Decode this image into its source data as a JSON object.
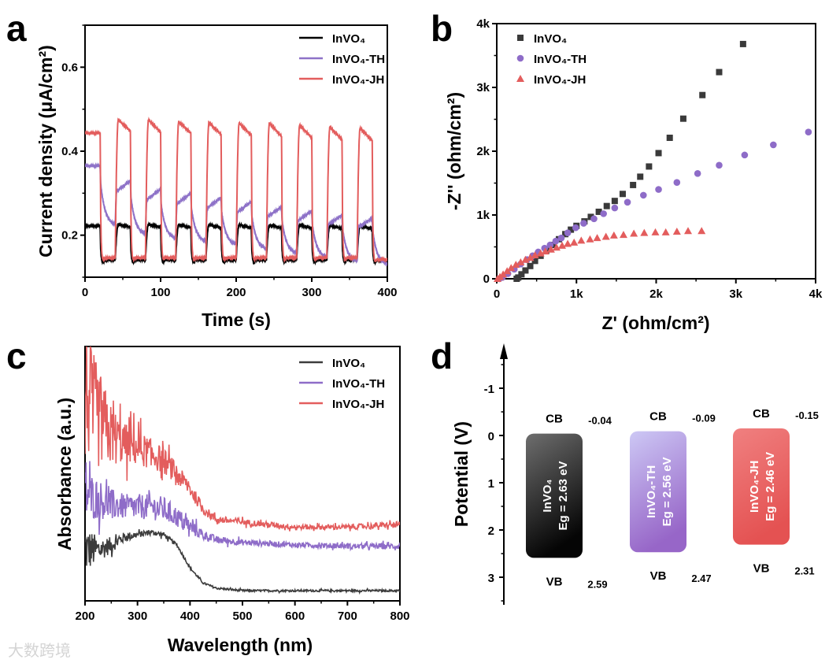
{
  "panel_labels": {
    "a": "a",
    "b": "b",
    "c": "c",
    "d": "d"
  },
  "watermark": "大数跨境",
  "chart_data": [
    {
      "panel": "a",
      "type": "line",
      "xlabel": "Time (s)",
      "ylabel": "Current density (μA/cm²)",
      "xlim": [
        0,
        400
      ],
      "ylim": [
        0.1,
        0.7
      ],
      "xticks": [
        0,
        100,
        200,
        300,
        400
      ],
      "xtick_labels": [
        "0",
        "100",
        "200",
        "300",
        "400"
      ],
      "yticks": [
        0.2,
        0.4,
        0.6
      ],
      "ytick_labels": [
        "0.2",
        "0.4",
        "0.6"
      ],
      "legend_position": "top-right",
      "light_on_intervals": [
        [
          40,
          60
        ],
        [
          80,
          100
        ],
        [
          120,
          140
        ],
        [
          160,
          180
        ],
        [
          200,
          220
        ],
        [
          240,
          260
        ],
        [
          280,
          300
        ],
        [
          320,
          340
        ],
        [
          360,
          380
        ]
      ],
      "off_intervals": [
        [
          20,
          40
        ],
        [
          60,
          80
        ],
        [
          100,
          120
        ],
        [
          140,
          160
        ],
        [
          180,
          200
        ],
        [
          220,
          240
        ],
        [
          260,
          280
        ],
        [
          300,
          320
        ],
        [
          340,
          360
        ],
        [
          380,
          400
        ]
      ],
      "series": [
        {
          "name": "InVO₄",
          "color": "#000000",
          "initial": 0.222,
          "decay_time_s": 0.8,
          "on_start": [
            0.226,
            0.226,
            0.225,
            0.225,
            0.225,
            0.224,
            0.224,
            0.223,
            0.222
          ],
          "on_end": [
            0.219,
            0.219,
            0.218,
            0.218,
            0.217,
            0.217,
            0.217,
            0.216,
            0.215
          ],
          "off_end": [
            0.141,
            0.141,
            0.141,
            0.141,
            0.141,
            0.141,
            0.141,
            0.141,
            0.141,
            0.14
          ]
        },
        {
          "name": "InVO₄-TH",
          "color": "#8e72c8",
          "initial": 0.365,
          "decay_time_s": 6,
          "on_start": [
            0.305,
            0.285,
            0.275,
            0.265,
            0.255,
            0.245,
            0.235,
            0.225,
            0.22
          ],
          "on_end": [
            0.33,
            0.31,
            0.3,
            0.29,
            0.28,
            0.267,
            0.258,
            0.248,
            0.24
          ],
          "off_end": [
            0.222,
            0.2,
            0.19,
            0.183,
            0.175,
            0.165,
            0.155,
            0.145,
            0.135,
            0.128
          ]
        },
        {
          "name": "InVO₄-JH",
          "color": "#e35d5d",
          "initial": 0.443,
          "decay_time_s": 0.8,
          "on_start": [
            0.475,
            0.475,
            0.47,
            0.468,
            0.467,
            0.467,
            0.462,
            0.457,
            0.455
          ],
          "on_end": [
            0.448,
            0.445,
            0.443,
            0.44,
            0.438,
            0.435,
            0.432,
            0.428,
            0.425
          ],
          "off_end": [
            0.146,
            0.146,
            0.146,
            0.146,
            0.146,
            0.146,
            0.146,
            0.146,
            0.146,
            0.142
          ]
        }
      ]
    },
    {
      "panel": "b",
      "type": "scatter",
      "xlabel": "Z' (ohm/cm²)",
      "ylabel": "-Z'' (ohm/cm²)",
      "xlim": [
        0,
        4000
      ],
      "ylim": [
        0,
        4000
      ],
      "xticks": [
        0,
        1000,
        2000,
        3000,
        4000
      ],
      "xtick_labels": [
        "0",
        "1k",
        "2k",
        "3k",
        "4k"
      ],
      "yticks": [
        0,
        1000,
        2000,
        3000,
        4000
      ],
      "ytick_labels": [
        "0",
        "1k",
        "2k",
        "3k",
        "4k"
      ],
      "legend_position": "top-left",
      "series": [
        {
          "name": "InVO₄",
          "color": "#3a3a3a",
          "marker": "square",
          "x": [
            250,
            270,
            310,
            360,
            420,
            480,
            550,
            620,
            700,
            780,
            860,
            930,
            1000,
            1100,
            1180,
            1280,
            1380,
            1480,
            1580,
            1710,
            1800,
            1910,
            2030,
            2170,
            2340,
            2580,
            2790,
            3090
          ],
          "y": [
            0,
            20,
            70,
            130,
            200,
            280,
            360,
            440,
            530,
            620,
            700,
            770,
            830,
            900,
            970,
            1050,
            1140,
            1220,
            1330,
            1470,
            1600,
            1760,
            1970,
            2210,
            2510,
            2880,
            3240,
            3680
          ]
        },
        {
          "name": "InVO₄-TH",
          "color": "#8e6cc8",
          "marker": "circle",
          "x": [
            30,
            70,
            140,
            220,
            300,
            380,
            450,
            520,
            600,
            670,
            740,
            810,
            890,
            990,
            1090,
            1220,
            1340,
            1480,
            1640,
            1840,
            2030,
            2260,
            2520,
            2790,
            3110,
            3470,
            3910
          ],
          "y": [
            0,
            20,
            80,
            150,
            230,
            300,
            360,
            420,
            480,
            530,
            590,
            640,
            720,
            800,
            870,
            940,
            1020,
            1110,
            1200,
            1310,
            1400,
            1510,
            1650,
            1780,
            1940,
            2100,
            2300
          ]
        },
        {
          "name": "InVO₄-JH",
          "color": "#e35d5d",
          "marker": "triangle",
          "x": [
            10,
            40,
            80,
            130,
            180,
            240,
            300,
            360,
            420,
            480,
            550,
            610,
            680,
            750,
            820,
            890,
            970,
            1060,
            1170,
            1260,
            1370,
            1470,
            1590,
            1720,
            1850,
            1990,
            2120,
            2260,
            2400,
            2570
          ],
          "y": [
            0,
            30,
            70,
            120,
            170,
            220,
            260,
            300,
            330,
            370,
            400,
            430,
            460,
            490,
            520,
            550,
            570,
            600,
            620,
            640,
            660,
            680,
            690,
            710,
            720,
            730,
            730,
            740,
            750,
            750
          ]
        }
      ]
    },
    {
      "panel": "c",
      "type": "line",
      "xlabel": "Wavelength (nm)",
      "ylabel": "Absorbance (a.u.)",
      "xlim": [
        200,
        800
      ],
      "ylim": [
        0,
        1
      ],
      "xticks": [
        200,
        300,
        400,
        500,
        600,
        700,
        800
      ],
      "xtick_labels": [
        "200",
        "300",
        "400",
        "500",
        "600",
        "700",
        "800"
      ],
      "legend_position": "top-right",
      "x": [
        200,
        225,
        250,
        275,
        300,
        325,
        350,
        375,
        400,
        425,
        450,
        500,
        600,
        700,
        800
      ],
      "series": [
        {
          "name": "InVO₄",
          "color": "#3c3c3c",
          "values": [
            0.2,
            0.2,
            0.22,
            0.25,
            0.26,
            0.27,
            0.26,
            0.22,
            0.13,
            0.07,
            0.05,
            0.04,
            0.04,
            0.04,
            0.04
          ],
          "noise": [
            0.1,
            0.05,
            0.03,
            0.02,
            0.012,
            0.01,
            0.01,
            0.006,
            0.005,
            0.004,
            0.004,
            0.004,
            0.004,
            0.004,
            0.004
          ]
        },
        {
          "name": "InVO₄-TH",
          "color": "#8e6cc8",
          "values": [
            0.42,
            0.4,
            0.38,
            0.37,
            0.37,
            0.37,
            0.36,
            0.33,
            0.29,
            0.26,
            0.24,
            0.23,
            0.22,
            0.215,
            0.215
          ],
          "noise": [
            0.1,
            0.08,
            0.06,
            0.05,
            0.05,
            0.05,
            0.05,
            0.04,
            0.03,
            0.02,
            0.015,
            0.012,
            0.01,
            0.01,
            0.012
          ]
        },
        {
          "name": "InVO₄-JH",
          "color": "#e35d5d",
          "values": [
            0.82,
            0.72,
            0.65,
            0.62,
            0.6,
            0.58,
            0.55,
            0.5,
            0.44,
            0.36,
            0.32,
            0.31,
            0.29,
            0.29,
            0.3
          ],
          "noise": [
            0.25,
            0.2,
            0.12,
            0.08,
            0.07,
            0.06,
            0.05,
            0.04,
            0.03,
            0.02,
            0.015,
            0.012,
            0.01,
            0.01,
            0.012
          ]
        }
      ]
    },
    {
      "panel": "d",
      "type": "band-diagram",
      "ylabel": "Potential (V)",
      "ylim": [
        -1.9,
        3.4
      ],
      "yticks": [
        -1,
        0,
        1,
        2,
        3
      ],
      "ytick_labels": [
        "-1",
        "0",
        "1",
        "2",
        "3"
      ],
      "cb_label": "CB",
      "vb_label": "VB",
      "materials": [
        {
          "name": "InVO₄",
          "eg_label": "Eg = 2.63 eV",
          "eg": 2.63,
          "cb": -0.04,
          "vb": 2.59,
          "cb_text": "-0.04",
          "vb_text": "2.59",
          "color_top": "#6e6e6e",
          "color_bottom": "#050505"
        },
        {
          "name": "InVO₄-TH",
          "eg_label": "Eg = 2.56 eV",
          "eg": 2.56,
          "cb": -0.09,
          "vb": 2.47,
          "cb_text": "-0.09",
          "vb_text": "2.47",
          "color_top": "#cdc8f5",
          "color_bottom": "#9766c8"
        },
        {
          "name": "InVO₄-JH",
          "eg_label": "Eg = 2.46 eV",
          "eg": 2.46,
          "cb": -0.15,
          "vb": 2.31,
          "cb_text": "-0.15",
          "vb_text": "2.31",
          "color_top": "#f08080",
          "color_bottom": "#e45252"
        }
      ]
    }
  ]
}
